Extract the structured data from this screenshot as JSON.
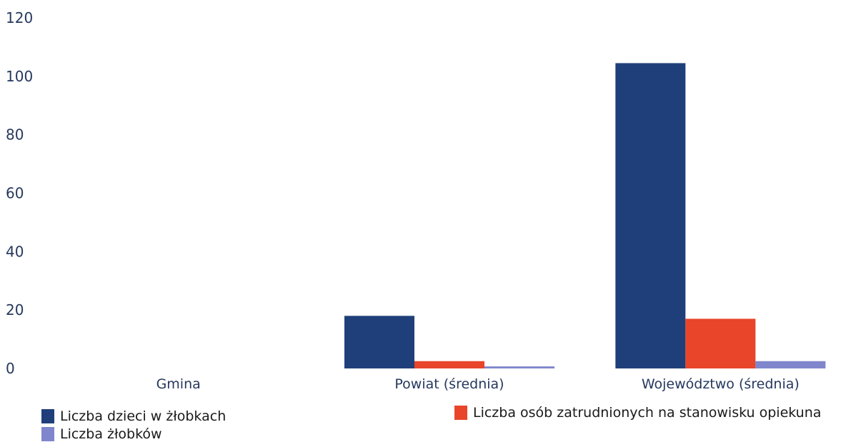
{
  "chart_data": {
    "type": "bar",
    "categories": [
      "Gmina",
      "Powiat (średnia)",
      "Województwo (średnia)"
    ],
    "series": [
      {
        "name": "Liczba dzieci w żłobkach",
        "values": [
          0,
          18,
          104.5
        ],
        "color": "#1f3f7a"
      },
      {
        "name": "Liczba osób zatrudnionych na stanowisku opiekuna",
        "values": [
          0,
          2.5,
          17
        ],
        "color": "#e8452a"
      },
      {
        "name": "Liczba żłobków",
        "values": [
          0,
          0.7,
          2.5
        ],
        "color": "#7f86cc"
      }
    ],
    "yticks": [
      "0",
      "20",
      "40",
      "60",
      "80",
      "100",
      "120"
    ],
    "ylim": [
      0,
      120
    ],
    "legend_position": "bottom",
    "grid": false
  }
}
